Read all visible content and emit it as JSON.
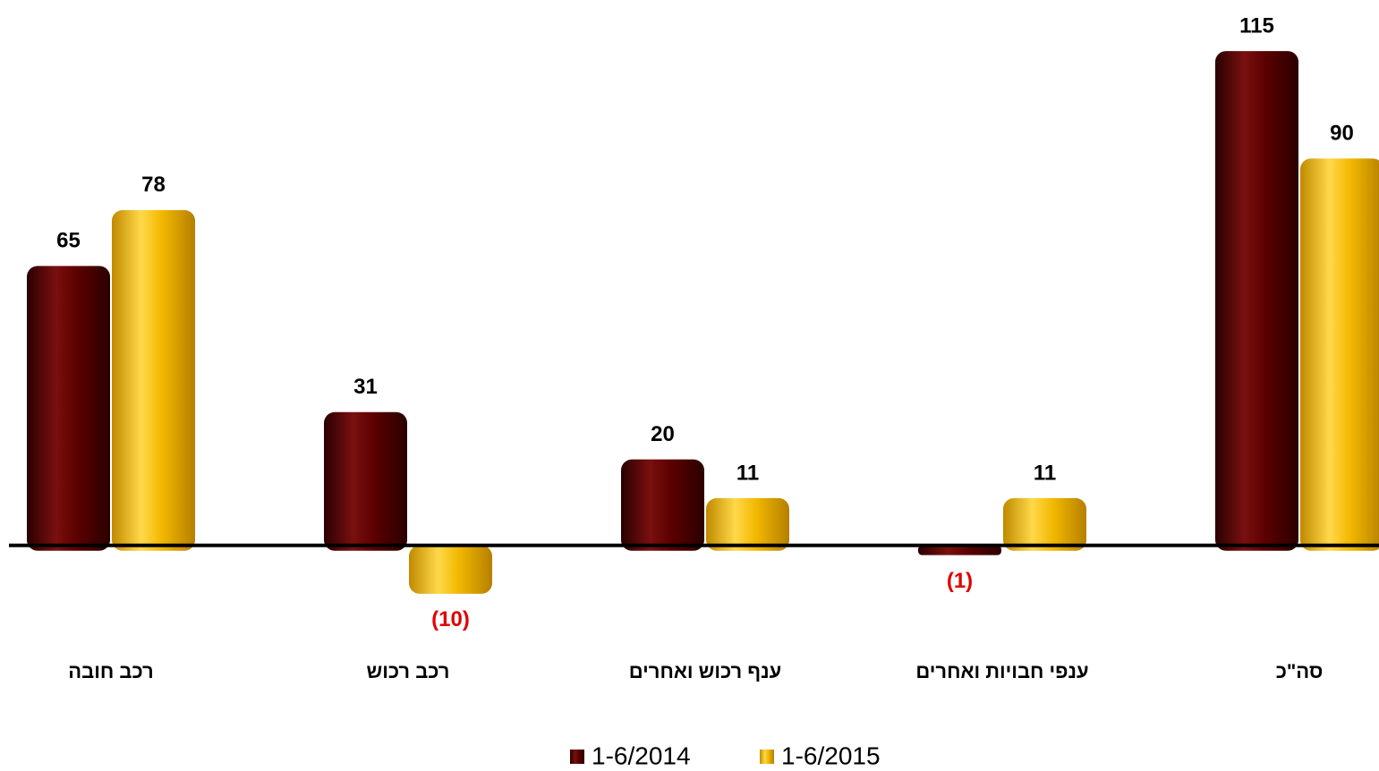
{
  "chart_data": {
    "type": "bar",
    "categories": [
      "רכב חובה",
      "רכב רכוש",
      "ענף רכוש ואחרים",
      "ענפי חבויות ואחרים",
      "סה\"כ"
    ],
    "series": [
      {
        "name": "1-6/2014",
        "color": "#5c0000",
        "values": [
          65,
          31,
          20,
          -1,
          115
        ],
        "value_labels": [
          "65",
          "31",
          "20",
          "(1)",
          "115"
        ]
      },
      {
        "name": "1-6/2015",
        "color": "#f2b800",
        "values": [
          78,
          -10,
          11,
          11,
          90
        ],
        "value_labels": [
          "78",
          "(10)",
          "11",
          "11",
          "90"
        ]
      }
    ],
    "negative_label_color": "#e00000",
    "ylim": [
      -30,
      125
    ],
    "legend": "bottom"
  }
}
